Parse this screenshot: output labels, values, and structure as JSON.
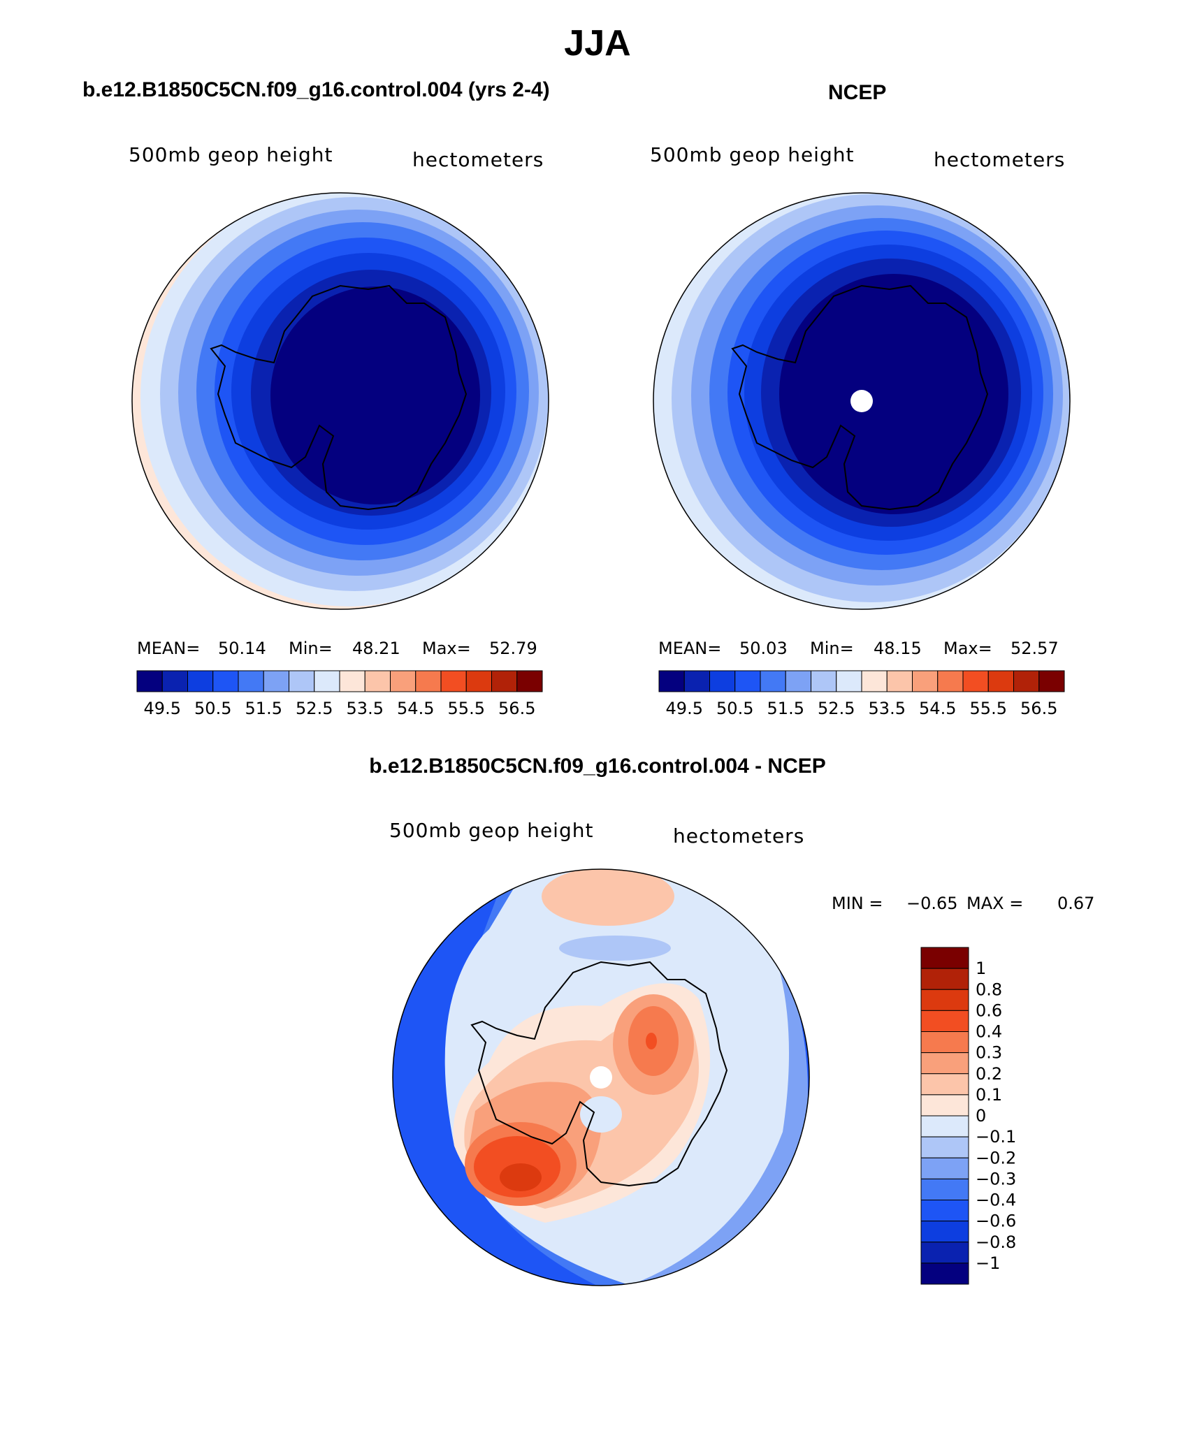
{
  "title": "JJA",
  "panels": [
    {
      "title": "b.e12.B1850C5CN.f09_g16.control.004 (yrs 2-4)",
      "left_label": "500mb geop height",
      "right_label": "hectometers",
      "stats": {
        "mean_label": "MEAN=",
        "mean": "50.14",
        "min_label": "Min=",
        "min": "48.21",
        "max_label": "Max=",
        "max": "52.79"
      }
    },
    {
      "title": "NCEP",
      "left_label": "500mb geop height",
      "right_label": "hectometers",
      "stats": {
        "mean_label": "MEAN=",
        "mean": "50.03",
        "min_label": "Min=",
        "min": "48.15",
        "max_label": "Max=",
        "max": "52.57"
      }
    },
    {
      "title": "b.e12.B1850C5CN.f09_g16.control.004 - NCEP",
      "left_label": "500mb geop height",
      "right_label": "hectometers",
      "stats": {
        "min_label": "MIN =",
        "min": "−0.65",
        "max_label": "MAX =",
        "max": "0.67"
      }
    }
  ],
  "chart_data": [
    {
      "type": "heatmap",
      "projection": "south polar stereographic",
      "title": "b.e12.B1850C5CN.f09_g16.control.004 (yrs 2-4)",
      "variable": "500mb geop height",
      "units": "hectometers",
      "mean": 50.14,
      "min": 48.21,
      "max": 52.79,
      "colorbar_orientation": "horizontal",
      "colorbar_ticks": [
        "49.5",
        "50.5",
        "51.5",
        "52.5",
        "53.5",
        "54.5",
        "55.5",
        "56.5"
      ],
      "colorbar_colors": [
        "#04007f",
        "#0a22b0",
        "#0d3ee0",
        "#1e55f5",
        "#4379f5",
        "#7da2f5",
        "#aec6f7",
        "#dce9fb",
        "#fde6d9",
        "#fcc5aa",
        "#f9a07b",
        "#f67a4e",
        "#f24e22",
        "#dc3a0f",
        "#b12208",
        "#7a0000"
      ]
    },
    {
      "type": "heatmap",
      "projection": "south polar stereographic",
      "title": "NCEP",
      "variable": "500mb geop height",
      "units": "hectometers",
      "mean": 50.03,
      "min": 48.15,
      "max": 52.57,
      "colorbar_orientation": "horizontal",
      "colorbar_ticks": [
        "49.5",
        "50.5",
        "51.5",
        "52.5",
        "53.5",
        "54.5",
        "55.5",
        "56.5"
      ],
      "colorbar_colors": [
        "#04007f",
        "#0a22b0",
        "#0d3ee0",
        "#1e55f5",
        "#4379f5",
        "#7da2f5",
        "#aec6f7",
        "#dce9fb",
        "#fde6d9",
        "#fcc5aa",
        "#f9a07b",
        "#f67a4e",
        "#f24e22",
        "#dc3a0f",
        "#b12208",
        "#7a0000"
      ]
    },
    {
      "type": "heatmap",
      "projection": "south polar stereographic",
      "title": "b.e12.B1850C5CN.f09_g16.control.004 - NCEP",
      "variable": "500mb geop height",
      "units": "hectometers",
      "min": -0.65,
      "max": 0.67,
      "colorbar_orientation": "vertical",
      "colorbar_ticks": [
        "1",
        "0.8",
        "0.6",
        "0.4",
        "0.3",
        "0.2",
        "0.1",
        "0",
        "−0.1",
        "−0.2",
        "−0.3",
        "−0.4",
        "−0.6",
        "−0.8",
        "−1"
      ],
      "colorbar_colors": [
        "#7a0000",
        "#b12208",
        "#dc3a0f",
        "#f24e22",
        "#f67a4e",
        "#f9a07b",
        "#fcc5aa",
        "#fde6d9",
        "#dce9fb",
        "#aec6f7",
        "#7da2f5",
        "#4379f5",
        "#1e55f5",
        "#0d3ee0",
        "#0a22b0",
        "#04007f"
      ]
    }
  ]
}
